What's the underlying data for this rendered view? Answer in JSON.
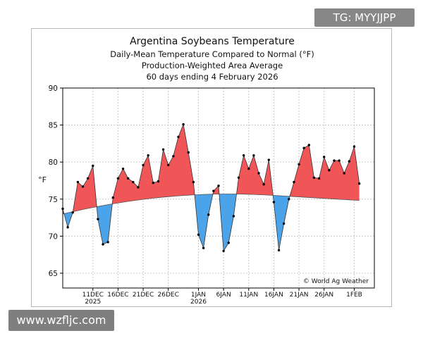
{
  "watermarks": {
    "top_right": "TG: MYYJJPP",
    "bottom_left": "www.wzfljc.com"
  },
  "chart_data": {
    "type": "area",
    "title": "Argentina Soybeans Temperature",
    "subtitles": [
      "Daily-Mean Temperature Compared to Normal (°F)",
      "Production-Weighted Area Average",
      "60 days ending 4 February 2026"
    ],
    "ylabel": "°F",
    "xlabel": "",
    "ylim": [
      63,
      90
    ],
    "yticks": [
      65,
      70,
      75,
      80,
      85,
      90
    ],
    "grid": true,
    "credit": "© World Ag Weather",
    "x_tick_labels": [
      {
        "day": 6,
        "label": "11DEC",
        "sub": "2025"
      },
      {
        "day": 11,
        "label": "16DEC",
        "sub": ""
      },
      {
        "day": 16,
        "label": "21DEC",
        "sub": ""
      },
      {
        "day": 21,
        "label": "26DEC",
        "sub": ""
      },
      {
        "day": 27,
        "label": "1JAN",
        "sub": "2026"
      },
      {
        "day": 32,
        "label": "6JAN",
        "sub": ""
      },
      {
        "day": 37,
        "label": "11JAN",
        "sub": ""
      },
      {
        "day": 42,
        "label": "16JAN",
        "sub": ""
      },
      {
        "day": 47,
        "label": "21JAN",
        "sub": ""
      },
      {
        "day": 52,
        "label": "26JAN",
        "sub": ""
      },
      {
        "day": 58,
        "label": "1FEB",
        "sub": ""
      }
    ],
    "x_day_count": 62,
    "series": [
      {
        "name": "Daily Mean",
        "color": "#000000",
        "values": [
          73.7,
          71.2,
          73.2,
          77.3,
          76.7,
          77.8,
          79.5,
          72.3,
          68.9,
          69.2,
          75.2,
          77.8,
          79.1,
          77.8,
          77.3,
          76.6,
          79.6,
          80.9,
          77.2,
          77.4,
          81.7,
          79.6,
          80.8,
          83.4,
          85.1,
          81.3,
          77.3,
          70.2,
          68.4,
          72.9,
          76.1,
          76.8,
          68.0,
          69.1,
          72.7,
          77.9,
          80.9,
          79.1,
          80.9,
          78.5,
          77.0,
          80.3,
          74.6,
          68.1,
          71.7,
          75.0,
          77.3,
          79.7,
          81.9,
          82.3,
          77.9,
          77.8,
          80.7,
          78.9,
          80.2,
          80.2,
          78.5,
          80.1,
          82.1,
          77.1
        ]
      },
      {
        "name": "Normal",
        "color": "#555555",
        "values": [
          73.0,
          73.15,
          73.3,
          73.45,
          73.6,
          73.74,
          73.87,
          74.0,
          74.13,
          74.25,
          74.37,
          74.48,
          74.59,
          74.69,
          74.79,
          74.88,
          74.97,
          75.05,
          75.13,
          75.2,
          75.27,
          75.33,
          75.39,
          75.44,
          75.49,
          75.53,
          75.57,
          75.6,
          75.63,
          75.65,
          75.67,
          75.68,
          75.69,
          75.69,
          75.69,
          75.68,
          75.67,
          75.65,
          75.63,
          75.6,
          75.57,
          75.54,
          75.5,
          75.46,
          75.42,
          75.38,
          75.34,
          75.3,
          75.26,
          75.22,
          75.18,
          75.14,
          75.1,
          75.06,
          75.02,
          74.98,
          74.94,
          74.9,
          74.86,
          74.82
        ]
      }
    ],
    "above_normal_color": "#f05558",
    "below_normal_color": "#4ba3ea"
  }
}
